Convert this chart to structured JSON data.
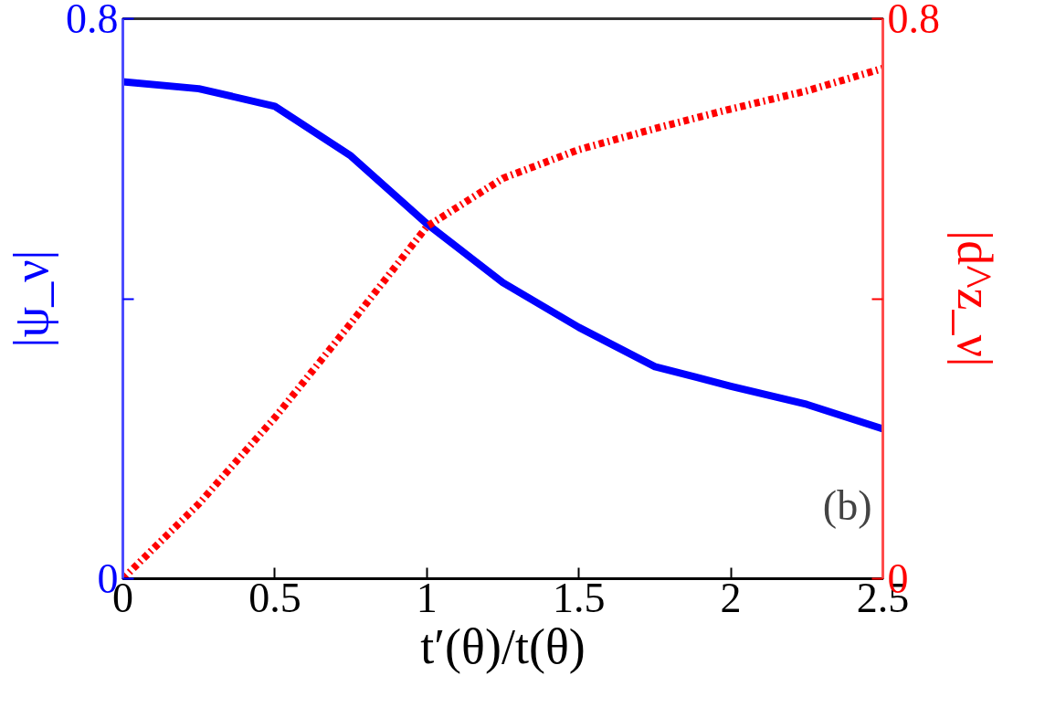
{
  "chart_data": {
    "type": "line",
    "xlabel": "t′(θ)/t(θ)",
    "ylabel": "|ψ_ν|",
    "y2label": "|d^z_ν|",
    "xlim": [
      0,
      2.5
    ],
    "xticks": [
      0,
      0.5,
      1,
      1.5,
      2,
      2.5
    ],
    "ylim": [
      0,
      0.8
    ],
    "yticks": [
      0,
      {
        "value": 0.4,
        "label": null
      },
      0.8
    ],
    "y2lim": [
      0,
      0.8
    ],
    "y2ticks": [
      0,
      {
        "value": 0.4,
        "label": null
      },
      0.8
    ],
    "grid": false,
    "annotations": [
      "(b)"
    ],
    "series": [
      {
        "color": "#0000ff",
        "line_style": "solid",
        "x": [
          0,
          0.25,
          0.5,
          0.75,
          1,
          1.25,
          1.5,
          1.75,
          2,
          2.25,
          2.5
        ],
        "values": [
          0.71,
          0.7,
          0.675,
          0.604,
          0.507,
          0.423,
          0.359,
          0.303,
          0.275,
          0.249,
          0.214
        ]
      },
      {
        "color": "#ff0000",
        "line_style": "dashdot",
        "axis": "y2",
        "x": [
          0,
          0.25,
          0.5,
          0.75,
          1,
          1.25,
          1.5,
          1.75,
          2,
          2.25,
          2.5
        ],
        "values": [
          0,
          0.107,
          0.23,
          0.365,
          0.503,
          0.572,
          0.613,
          0.643,
          0.671,
          0.697,
          0.729
        ]
      }
    ]
  }
}
